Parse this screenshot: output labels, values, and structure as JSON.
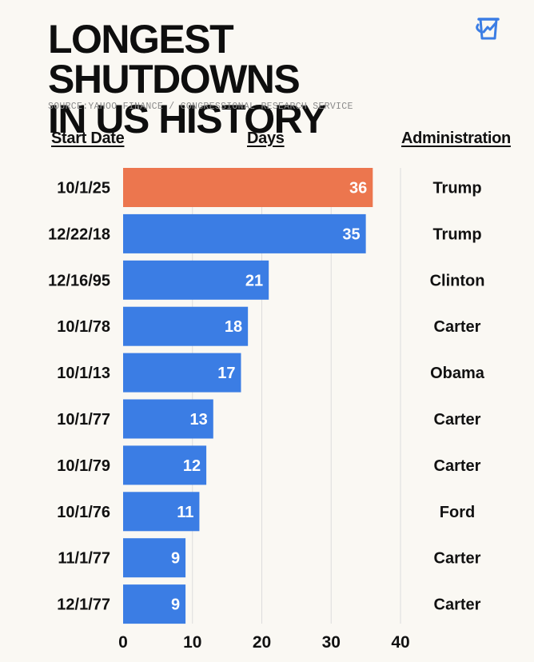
{
  "header": {
    "title_line1": "LONGEST SHUTDOWNS",
    "title_line2": "IN US HISTORY",
    "source": "SOURCE:YAHOO FINANCE / CONGRESSIONAL RESEARCH SERVICE",
    "logo_icon": "coffee-mug-chart-icon"
  },
  "columns": {
    "start_date": "Start Date",
    "days": "Days",
    "administration": "Administration"
  },
  "colors": {
    "highlight": "#ec764e",
    "bar": "#3b7de4",
    "grid": "#dcdcdc",
    "background": "#faf8f3"
  },
  "chart_data": {
    "type": "bar",
    "orientation": "horizontal",
    "categories": [
      "10/1/25",
      "12/22/18",
      "12/16/95",
      "10/1/78",
      "10/1/13",
      "10/1/77",
      "10/1/79",
      "10/1/76",
      "11/1/77",
      "12/1/77"
    ],
    "values": [
      36,
      35,
      21,
      18,
      17,
      13,
      12,
      11,
      9,
      9
    ],
    "administrations": [
      "Trump",
      "Trump",
      "Clinton",
      "Carter",
      "Obama",
      "Carter",
      "Carter",
      "Ford",
      "Carter",
      "Carter"
    ],
    "highlight_index": 0,
    "xlim": [
      0,
      40
    ],
    "xticks": [
      0,
      10,
      20,
      30,
      40
    ],
    "grid": true
  }
}
